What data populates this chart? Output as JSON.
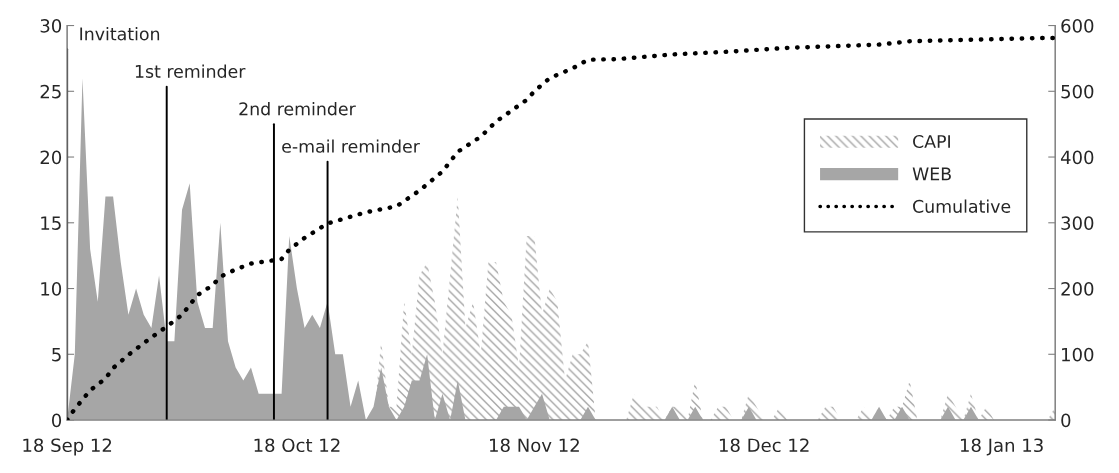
{
  "chart_data": {
    "type": "area",
    "x": [
      "2012-09-18",
      "2012-09-19",
      "2012-09-20",
      "2012-09-21",
      "2012-09-22",
      "2012-09-23",
      "2012-09-24",
      "2012-09-25",
      "2012-09-26",
      "2012-09-27",
      "2012-09-28",
      "2012-09-29",
      "2012-09-30",
      "2012-10-01",
      "2012-10-02",
      "2012-10-03",
      "2012-10-04",
      "2012-10-05",
      "2012-10-06",
      "2012-10-07",
      "2012-10-08",
      "2012-10-09",
      "2012-10-10",
      "2012-10-11",
      "2012-10-12",
      "2012-10-13",
      "2012-10-14",
      "2012-10-15",
      "2012-10-16",
      "2012-10-17",
      "2012-10-18",
      "2012-10-19",
      "2012-10-20",
      "2012-10-21",
      "2012-10-22",
      "2012-10-23",
      "2012-10-24",
      "2012-10-25",
      "2012-10-26",
      "2012-10-27",
      "2012-10-28",
      "2012-10-29",
      "2012-10-30",
      "2012-10-31",
      "2012-11-01",
      "2012-11-02",
      "2012-11-03",
      "2012-11-04",
      "2012-11-05",
      "2012-11-06",
      "2012-11-07",
      "2012-11-08",
      "2012-11-09",
      "2012-11-10",
      "2012-11-11",
      "2012-11-12",
      "2012-11-13",
      "2012-11-14",
      "2012-11-15",
      "2012-11-16",
      "2012-11-17",
      "2012-11-18",
      "2012-11-19",
      "2012-11-20",
      "2012-11-21",
      "2012-11-22",
      "2012-11-23",
      "2012-11-24",
      "2012-11-25",
      "2012-11-26",
      "2012-11-27",
      "2012-11-28",
      "2012-11-29",
      "2012-11-30",
      "2012-12-01",
      "2012-12-02",
      "2012-12-03",
      "2012-12-04",
      "2012-12-05",
      "2012-12-06",
      "2012-12-07",
      "2012-12-08",
      "2012-12-09",
      "2012-12-10",
      "2012-12-11",
      "2012-12-12",
      "2012-12-13",
      "2012-12-14",
      "2012-12-15",
      "2012-12-16",
      "2012-12-17",
      "2012-12-18",
      "2012-12-19",
      "2012-12-20",
      "2012-12-21",
      "2012-12-22",
      "2012-12-23",
      "2012-12-24",
      "2012-12-25",
      "2012-12-26",
      "2012-12-27",
      "2012-12-28",
      "2012-12-29",
      "2012-12-30",
      "2012-12-31",
      "2013-01-01",
      "2013-01-02",
      "2013-01-03",
      "2013-01-04",
      "2013-01-05",
      "2013-01-06",
      "2013-01-07",
      "2013-01-08",
      "2013-01-09",
      "2013-01-10",
      "2013-01-11",
      "2013-01-12",
      "2013-01-13",
      "2013-01-14",
      "2013-01-15",
      "2013-01-16",
      "2013-01-17",
      "2013-01-18",
      "2013-01-19",
      "2013-01-20",
      "2013-01-21",
      "2013-01-22",
      "2013-01-23",
      "2013-01-24",
      "2013-01-25"
    ],
    "series": [
      {
        "name": "CAPI",
        "color": "#a6a6a6",
        "values": [
          0,
          0,
          0,
          0,
          0,
          0,
          0,
          0,
          0,
          0,
          0,
          0,
          0,
          0,
          0,
          0,
          0,
          0,
          0,
          0,
          0,
          0,
          0,
          0,
          0,
          0,
          0,
          0,
          0,
          0,
          0,
          0,
          0,
          0,
          0,
          0,
          0,
          0,
          0,
          0,
          0,
          6,
          1,
          1,
          9,
          5,
          11,
          12,
          9,
          5,
          11,
          17,
          7,
          9,
          5,
          12,
          12,
          9,
          8,
          4,
          14,
          14,
          8,
          10,
          9,
          3,
          5,
          5,
          6,
          0,
          0,
          0,
          0,
          0,
          2,
          1,
          1,
          1,
          0,
          1,
          1,
          0,
          3,
          0,
          0,
          1,
          1,
          0,
          0,
          2,
          1,
          0,
          0,
          1,
          0,
          0,
          0,
          0,
          0,
          1,
          1,
          0,
          0,
          0,
          1,
          0,
          1,
          0,
          1,
          1,
          3,
          0,
          0,
          0,
          0,
          2,
          1,
          0,
          2,
          0,
          1,
          0,
          0,
          0,
          0,
          0,
          0,
          0,
          0,
          1
        ]
      },
      {
        "name": "WEB",
        "color": "#a6a6a6",
        "values": [
          0,
          5,
          26,
          13,
          9,
          17,
          17,
          12,
          8,
          10,
          8,
          7,
          11,
          6,
          6,
          16,
          18,
          9,
          7,
          7,
          15,
          6,
          4,
          3,
          4,
          2,
          2,
          2,
          2,
          14,
          10,
          7,
          8,
          7,
          9,
          5,
          5,
          1,
          3,
          0,
          1,
          4,
          1,
          0,
          1,
          3,
          3,
          5,
          0,
          2,
          0,
          3,
          0,
          0,
          0,
          0,
          0,
          1,
          1,
          1,
          0,
          1,
          2,
          0,
          0,
          0,
          0,
          0,
          1,
          0,
          0,
          0,
          0,
          0,
          0,
          0,
          0,
          0,
          0,
          1,
          0,
          0,
          1,
          0,
          0,
          0,
          0,
          0,
          0,
          1,
          0,
          0,
          0,
          0,
          0,
          0,
          0,
          0,
          0,
          0,
          0,
          0,
          0,
          0,
          0,
          0,
          1,
          0,
          0,
          1,
          0,
          0,
          0,
          0,
          0,
          1,
          0,
          0,
          1,
          0,
          0,
          0,
          0,
          0,
          0,
          0,
          0,
          0,
          0,
          0
        ]
      },
      {
        "name": "Cumulative",
        "type": "line",
        "axis": "y2",
        "color": "#000000",
        "line_style": "dotted",
        "x": [
          "2012-09-18",
          "2012-09-19",
          "2012-09-21",
          "2012-09-23",
          "2012-09-24",
          "2012-09-26",
          "2012-09-28",
          "2012-09-30",
          "2012-10-01",
          "2012-10-03",
          "2012-10-05",
          "2012-10-07",
          "2012-10-08",
          "2012-10-10",
          "2012-10-12",
          "2012-10-15",
          "2012-10-16",
          "2012-10-17",
          "2012-10-19",
          "2012-10-22",
          "2012-10-27",
          "2012-10-31",
          "2012-11-03",
          "2012-11-06",
          "2012-11-08",
          "2012-11-11",
          "2012-11-13",
          "2012-11-17",
          "2012-11-18",
          "2012-11-20",
          "2012-11-23",
          "2012-11-25",
          "2012-11-29",
          "2012-12-06",
          "2012-12-13",
          "2012-12-21",
          "2013-01-02",
          "2013-01-06",
          "2013-01-23",
          "2013-01-25"
        ],
        "values": [
          0,
          17,
          45,
          63,
          79,
          99,
          117,
          134,
          142,
          160,
          190,
          205,
          218,
          229,
          238,
          243,
          245,
          259,
          277,
          299,
          316,
          325,
          349,
          378,
          408,
          431,
          454,
          487,
          500,
          520,
          535,
          548,
          549,
          556,
          560,
          566,
          571,
          576,
          581,
          581
        ]
      }
    ],
    "xlim": [
      "2012-09-18",
      "2013-01-25"
    ],
    "xticks": [
      {
        "value": "2012-09-18",
        "label": "18 Sep 12"
      },
      {
        "value": "2012-10-18",
        "label": "18 Oct 12"
      },
      {
        "value": "2012-11-18",
        "label": "18 Nov 12"
      },
      {
        "value": "2012-12-18",
        "label": "18 Dec 12"
      },
      {
        "value": "2013-01-18",
        "label": "18 Jan 13"
      }
    ],
    "ylim": [
      0,
      30
    ],
    "yticks": [
      0,
      5,
      10,
      15,
      20,
      25,
      30
    ],
    "y2lim": [
      0,
      600
    ],
    "y2ticks": [
      0,
      100,
      200,
      300,
      400,
      500,
      600
    ],
    "ref_lines": [
      {
        "axis": "x",
        "value": "2012-09-18",
        "label": "Invitation",
        "color": "#000000"
      },
      {
        "axis": "x",
        "value": "2012-10-01",
        "label": "1st reminder",
        "color": "#000000"
      },
      {
        "axis": "x",
        "value": "2012-10-15",
        "label": "2nd reminder",
        "color": "#000000"
      },
      {
        "axis": "x",
        "value": "2012-10-22",
        "label": "e-mail reminder",
        "color": "#000000"
      }
    ],
    "legend": "right",
    "grid": false
  }
}
